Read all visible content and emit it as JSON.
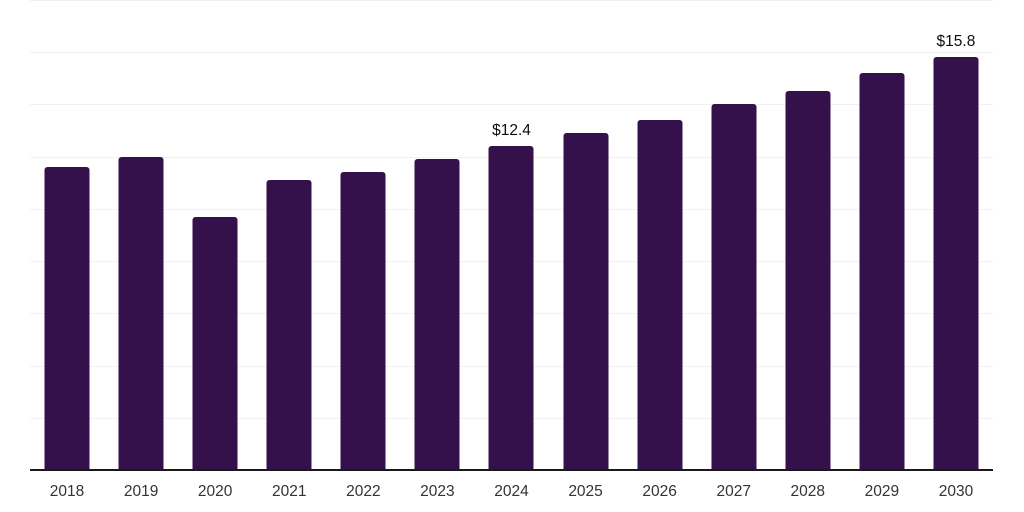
{
  "chart_data": {
    "type": "bar",
    "title": "",
    "xlabel": "",
    "ylabel": "",
    "categories": [
      "2018",
      "2019",
      "2020",
      "2021",
      "2022",
      "2023",
      "2024",
      "2025",
      "2026",
      "2027",
      "2028",
      "2029",
      "2030"
    ],
    "values": [
      11.6,
      12.0,
      9.7,
      11.1,
      11.4,
      11.9,
      12.4,
      12.9,
      13.4,
      14.0,
      14.5,
      15.2,
      15.8
    ],
    "data_labels": [
      {
        "category": "2024",
        "text": "$12.4"
      },
      {
        "category": "2030",
        "text": "$15.8"
      }
    ],
    "ylim": [
      0,
      18
    ],
    "gridline_step": 2,
    "grid": true,
    "legend": false,
    "y_tick_labels_visible": false,
    "colors": {
      "bar": "#35114b",
      "gridline": "#f1f1f3",
      "axis_line": "#1a1a1a",
      "tick_label": "#333333",
      "data_label": "#0d0d0d",
      "background": "#ffffff"
    }
  }
}
